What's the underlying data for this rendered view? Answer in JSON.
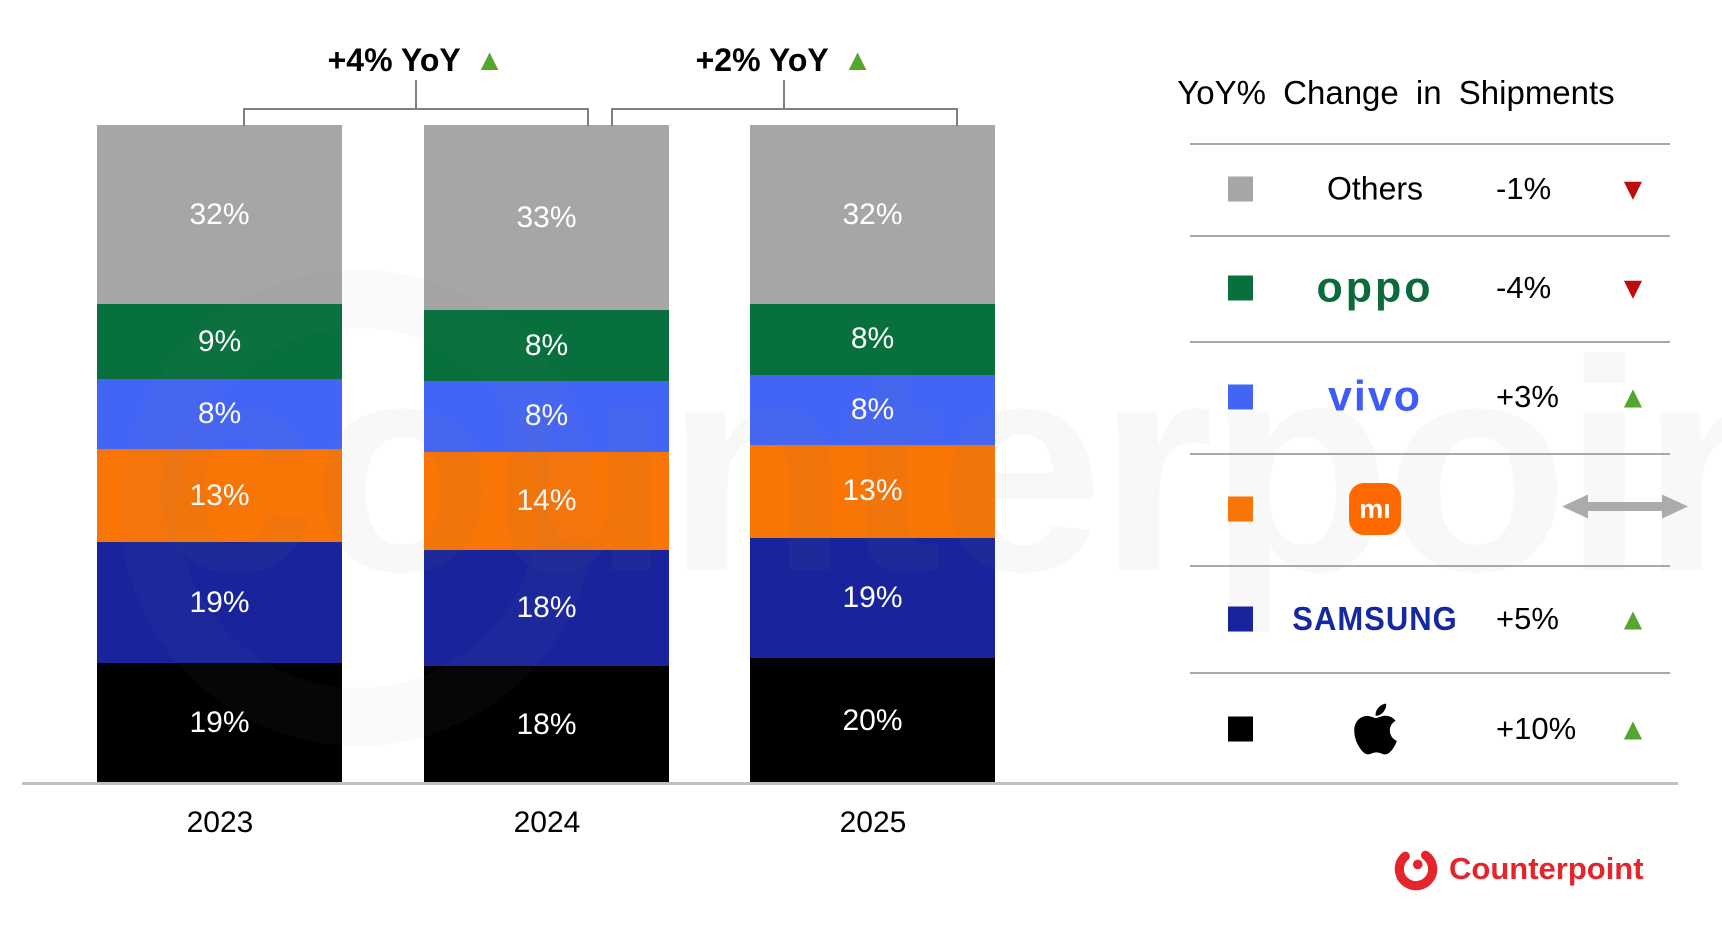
{
  "chart_data": {
    "type": "bar",
    "stacked": true,
    "value_unit": "%",
    "categories": [
      "2023",
      "2024",
      "2025"
    ],
    "series": [
      {
        "name": "Apple",
        "color": "#000000",
        "values": [
          19,
          18,
          20
        ]
      },
      {
        "name": "Samsung",
        "color": "#19249C",
        "values": [
          19,
          18,
          19
        ]
      },
      {
        "name": "Xiaomi",
        "color": "#F97506",
        "values": [
          13,
          14,
          13
        ]
      },
      {
        "name": "vivo",
        "color": "#4365F6",
        "values": [
          8,
          8,
          8
        ]
      },
      {
        "name": "OPPO",
        "color": "#07703C",
        "values": [
          9,
          8,
          8
        ]
      },
      {
        "name": "Others",
        "color": "#A6A6A6",
        "values": [
          32,
          33,
          32
        ]
      }
    ],
    "ylim": [
      0,
      100
    ],
    "grid": false,
    "legend_position": "right",
    "annotations": [
      {
        "label": "+4% YoY",
        "direction": "up",
        "between": [
          "2023",
          "2024"
        ]
      },
      {
        "label": "+2% YoY",
        "direction": "up",
        "between": [
          "2024",
          "2025"
        ]
      }
    ]
  },
  "legend": {
    "title": "YoY% Change in Shipments",
    "rows": [
      {
        "brand": "Others",
        "logo": "text",
        "label": "Others",
        "swatch": "#A6A6A6",
        "change": "-1%",
        "direction": "down"
      },
      {
        "brand": "OPPO",
        "logo": "oppo",
        "label": "oppo",
        "swatch": "#07703C",
        "change": "-4%",
        "direction": "down"
      },
      {
        "brand": "vivo",
        "logo": "vivo",
        "label": "vivo",
        "swatch": "#4365F6",
        "change": "+3%",
        "direction": "up"
      },
      {
        "brand": "Xiaomi",
        "logo": "mi",
        "label": "mı",
        "swatch": "#F97506",
        "change": "",
        "direction": "flat"
      },
      {
        "brand": "Samsung",
        "logo": "samsung",
        "label": "SAMSUNG",
        "swatch": "#19249C",
        "change": "+5%",
        "direction": "up"
      },
      {
        "brand": "Apple",
        "logo": "apple",
        "label": "",
        "swatch": "#000000",
        "change": "+10%",
        "direction": "up"
      }
    ]
  },
  "icons": {
    "up_triangle": "▲",
    "down_triangle": "▼"
  },
  "colors": {
    "up": "#54A62E",
    "down": "#BE0B0B",
    "flat": "#ABABAB",
    "baseline": "#BFBFBF",
    "divider": "#A9A9A9",
    "oppo_green": "#0B6B3B",
    "vivo_blue": "#415CF5",
    "samsung_blue": "#1428A0",
    "mi_orange": "#FF6900",
    "counterpoint_red": "#E4252B"
  },
  "watermark": {
    "text": "counterpoint"
  },
  "footer": {
    "brand": "Counterpoint"
  }
}
